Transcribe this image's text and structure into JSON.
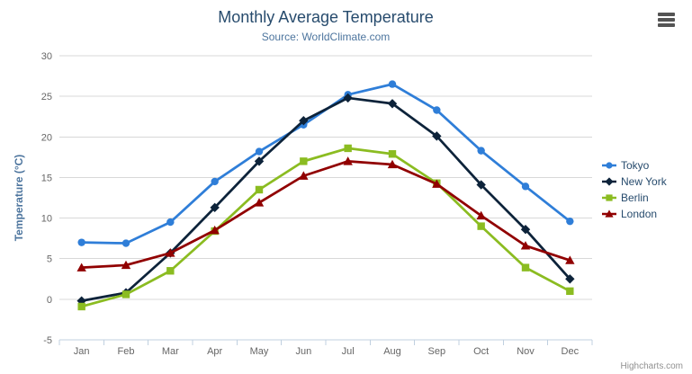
{
  "chart": {
    "credits": "Highcharts.com",
    "export_icon": "hamburger-icon"
  },
  "colors": {
    "title": "#274b6d",
    "subtitle": "#4d759e",
    "axis_label": "#666666",
    "y_axis_title": "#4d759e",
    "gridline": "#d8d8d8",
    "axis_line": "#c0d0e0",
    "legend_text": "#274b6d",
    "credits_text": "#909090",
    "export_icon": "#545454"
  },
  "chart_data": {
    "type": "line",
    "title": "Monthly Average Temperature",
    "subtitle": "Source: WorldClimate.com",
    "xlabel": "",
    "ylabel": "Temperature (°C)",
    "ylim": [
      -5,
      30
    ],
    "yticks": [
      -5,
      0,
      5,
      10,
      15,
      20,
      25,
      30
    ],
    "grid": true,
    "legend_position": "right",
    "categories": [
      "Jan",
      "Feb",
      "Mar",
      "Apr",
      "May",
      "Jun",
      "Jul",
      "Aug",
      "Sep",
      "Oct",
      "Nov",
      "Dec"
    ],
    "series": [
      {
        "name": "Tokyo",
        "color": "#2f7ed8",
        "marker": "circle",
        "values": [
          7.0,
          6.9,
          9.5,
          14.5,
          18.2,
          21.5,
          25.2,
          26.5,
          23.3,
          18.3,
          13.9,
          9.6
        ]
      },
      {
        "name": "New York",
        "color": "#0d233a",
        "marker": "diamond",
        "values": [
          -0.2,
          0.8,
          5.7,
          11.3,
          17.0,
          22.0,
          24.8,
          24.1,
          20.1,
          14.1,
          8.6,
          2.5
        ]
      },
      {
        "name": "Berlin",
        "color": "#8bbc21",
        "marker": "square",
        "values": [
          -0.9,
          0.6,
          3.5,
          8.4,
          13.5,
          17.0,
          18.6,
          17.9,
          14.3,
          9.0,
          3.9,
          1.0
        ]
      },
      {
        "name": "London",
        "color": "#910000",
        "marker": "triangle",
        "values": [
          3.9,
          4.2,
          5.7,
          8.5,
          11.9,
          15.2,
          17.0,
          16.6,
          14.2,
          10.3,
          6.6,
          4.8
        ]
      }
    ]
  }
}
